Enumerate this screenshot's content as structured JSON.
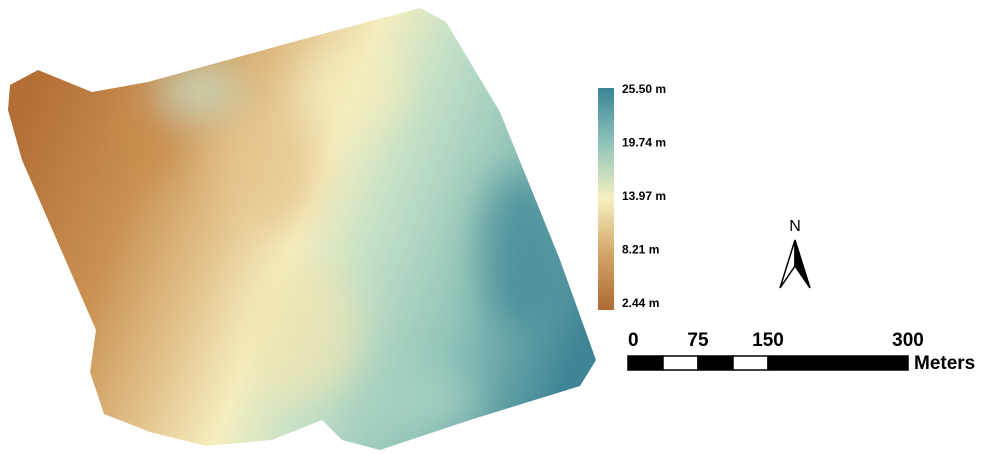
{
  "legend": {
    "labels": [
      "25.50 m",
      "19.74 m",
      "13.97 m",
      "8.21 m",
      "2.44 m"
    ]
  },
  "north_arrow": {
    "label": "N"
  },
  "scale_bar": {
    "ticks": [
      "0",
      "75",
      "150",
      "300"
    ],
    "unit": "Meters"
  }
}
